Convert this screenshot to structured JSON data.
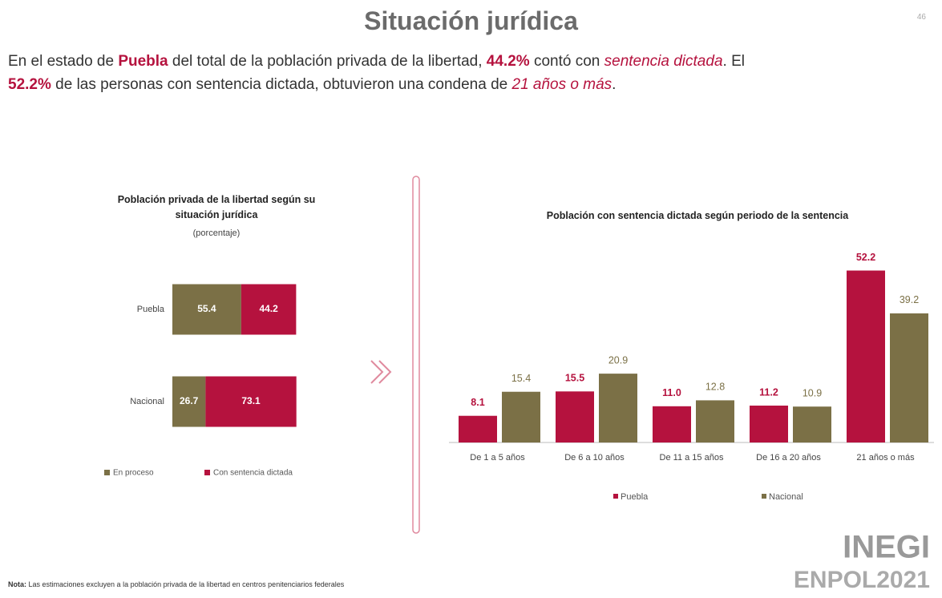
{
  "title": "Situación jurídica",
  "page_number": "46",
  "intro": [
    "En el estado de ",
    "Puebla",
    " del total de la población privada de la libertad, ",
    "44.2%",
    " contó con ",
    "sentencia dictada",
    ". El ",
    "52.2%",
    " de las personas con sentencia dictada, obtuvieron una condena de ",
    "21 años o más",
    "."
  ],
  "chart_data": [
    {
      "type": "bar",
      "orientation": "horizontal",
      "stacked": true,
      "title": "Población privada de la libertad según su situación jurídica",
      "subtitle": "(porcentaje)",
      "categories": [
        "Puebla",
        "Nacional"
      ],
      "xlim": [
        0,
        100
      ],
      "legend": "bottom",
      "series": [
        {
          "name": "En proceso",
          "color": "#7b7046",
          "values": [
            55.4,
            26.7
          ]
        },
        {
          "name": "Con sentencia dictada",
          "color": "#b5123e",
          "values": [
            44.2,
            73.1
          ]
        }
      ]
    },
    {
      "type": "bar",
      "title": "Población con sentencia dictada según periodo de la sentencia",
      "categories": [
        "De 1 a 5 años",
        "De 6 a 10 años",
        "De 11 a 15 años",
        "De 16 a 20 años",
        "21 años o más"
      ],
      "ylim": [
        0,
        55
      ],
      "legend": "bottom",
      "series": [
        {
          "name": "Puebla",
          "color": "#b5123e",
          "values": [
            8.1,
            15.5,
            11.0,
            11.2,
            52.2
          ],
          "value_labels": [
            "8.1",
            "15.5",
            "11.0",
            "11.2",
            "52.2"
          ]
        },
        {
          "name": "Nacional",
          "color": "#7b7046",
          "values": [
            15.4,
            20.9,
            12.8,
            10.9,
            39.2
          ]
        }
      ]
    }
  ],
  "note": {
    "label": "Nota:",
    "text": " Las estimaciones excluyen a la población privada de la libertad en centros penitenciarios federales"
  },
  "logo": {
    "brand": "INEGI",
    "survey": "ENPOL2021"
  }
}
